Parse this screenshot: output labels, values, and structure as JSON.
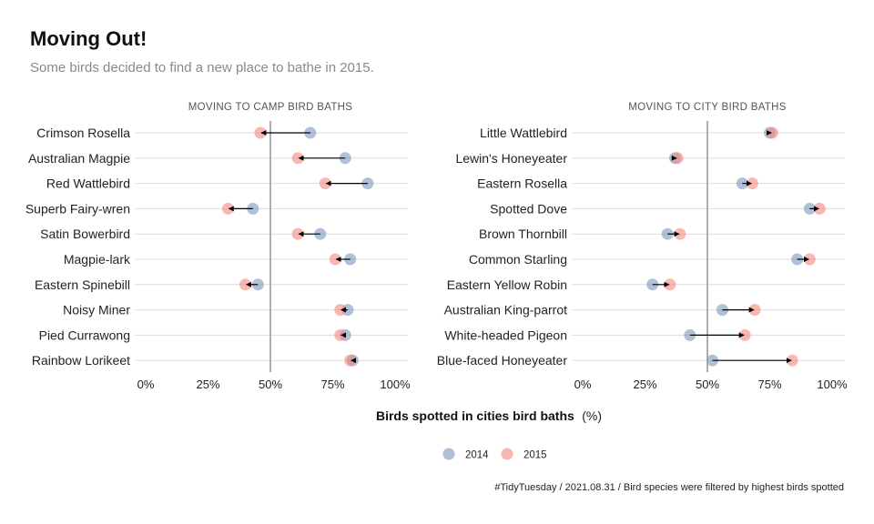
{
  "title": "Moving Out!",
  "subtitle": "Some birds decided to find a new place to bathe in 2015.",
  "caption": "#TidyTuesday / 2021.08.31 / Bird species were filtered by highest birds spotted",
  "colors": {
    "y2014": "#7b96bd",
    "y2015": "#f4877d",
    "arrow": "#000000",
    "refline": "#999999",
    "grid": "#dcdcdc"
  },
  "chart_data": {
    "type": "dumbbell",
    "xlabel_bold": "Birds spotted in cities bird baths",
    "xlabel_unit": "(%)",
    "xlim": [
      0,
      100
    ],
    "xticks": [
      "0%",
      "25%",
      "50%",
      "75%",
      "100%"
    ],
    "reference_x": 50,
    "legend": {
      "position": "bottom",
      "entries": [
        "2014",
        "2015"
      ]
    },
    "panels": [
      {
        "strip": "MOVING TO CAMP BIRD BATHS",
        "birds": [
          {
            "name": "Crimson Rosella",
            "y2014": 66,
            "y2015": 46
          },
          {
            "name": "Australian Magpie",
            "y2014": 80,
            "y2015": 61
          },
          {
            "name": "Red Wattlebird",
            "y2014": 89,
            "y2015": 72
          },
          {
            "name": "Superb Fairy-wren",
            "y2014": 43,
            "y2015": 33
          },
          {
            "name": "Satin Bowerbird",
            "y2014": 70,
            "y2015": 61
          },
          {
            "name": "Magpie-lark",
            "y2014": 82,
            "y2015": 76
          },
          {
            "name": "Eastern Spinebill",
            "y2014": 45,
            "y2015": 40
          },
          {
            "name": "Noisy Miner",
            "y2014": 81,
            "y2015": 78
          },
          {
            "name": "Pied Currawong",
            "y2014": 80,
            "y2015": 78
          },
          {
            "name": "Rainbow Lorikeet",
            "y2014": 83,
            "y2015": 82
          }
        ]
      },
      {
        "strip": "MOVING TO CITY BIRD BATHS",
        "birds": [
          {
            "name": "Little Wattlebird",
            "y2014": 75,
            "y2015": 76
          },
          {
            "name": "Lewin's Honeyeater",
            "y2014": 37,
            "y2015": 38
          },
          {
            "name": "Eastern Rosella",
            "y2014": 64,
            "y2015": 68
          },
          {
            "name": "Spotted Dove",
            "y2014": 91,
            "y2015": 95
          },
          {
            "name": "Brown Thornbill",
            "y2014": 34,
            "y2015": 39
          },
          {
            "name": "Common Starling",
            "y2014": 86,
            "y2015": 91
          },
          {
            "name": "Eastern Yellow Robin",
            "y2014": 28,
            "y2015": 35
          },
          {
            "name": "Australian King-parrot",
            "y2014": 56,
            "y2015": 69
          },
          {
            "name": "White-headed Pigeon",
            "y2014": 43,
            "y2015": 65
          },
          {
            "name": "Blue-faced Honeyeater",
            "y2014": 52,
            "y2015": 84
          }
        ]
      }
    ]
  }
}
